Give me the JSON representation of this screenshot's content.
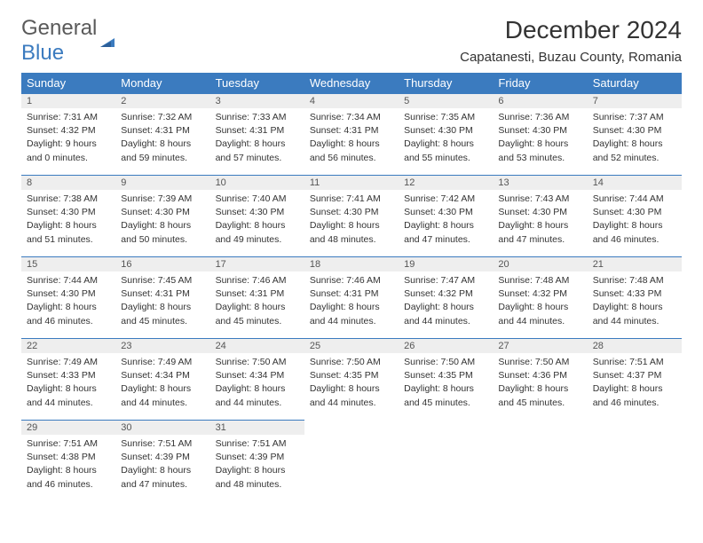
{
  "logo": {
    "line1": "General",
    "line2": "Blue"
  },
  "title": "December 2024",
  "location": "Capatanesti, Buzau County, Romania",
  "columns": [
    "Sunday",
    "Monday",
    "Tuesday",
    "Wednesday",
    "Thursday",
    "Friday",
    "Saturday"
  ],
  "colors": {
    "header_bg": "#3b7bbf",
    "header_text": "#ffffff",
    "daynum_bg": "#eeeeee",
    "daynum_border": "#3b7bbf",
    "text": "#333333"
  },
  "weeks": [
    [
      {
        "n": "1",
        "sunrise": "7:31 AM",
        "sunset": "4:32 PM",
        "dl1": "9 hours",
        "dl2": "0 minutes."
      },
      {
        "n": "2",
        "sunrise": "7:32 AM",
        "sunset": "4:31 PM",
        "dl1": "8 hours",
        "dl2": "59 minutes."
      },
      {
        "n": "3",
        "sunrise": "7:33 AM",
        "sunset": "4:31 PM",
        "dl1": "8 hours",
        "dl2": "57 minutes."
      },
      {
        "n": "4",
        "sunrise": "7:34 AM",
        "sunset": "4:31 PM",
        "dl1": "8 hours",
        "dl2": "56 minutes."
      },
      {
        "n": "5",
        "sunrise": "7:35 AM",
        "sunset": "4:30 PM",
        "dl1": "8 hours",
        "dl2": "55 minutes."
      },
      {
        "n": "6",
        "sunrise": "7:36 AM",
        "sunset": "4:30 PM",
        "dl1": "8 hours",
        "dl2": "53 minutes."
      },
      {
        "n": "7",
        "sunrise": "7:37 AM",
        "sunset": "4:30 PM",
        "dl1": "8 hours",
        "dl2": "52 minutes."
      }
    ],
    [
      {
        "n": "8",
        "sunrise": "7:38 AM",
        "sunset": "4:30 PM",
        "dl1": "8 hours",
        "dl2": "51 minutes."
      },
      {
        "n": "9",
        "sunrise": "7:39 AM",
        "sunset": "4:30 PM",
        "dl1": "8 hours",
        "dl2": "50 minutes."
      },
      {
        "n": "10",
        "sunrise": "7:40 AM",
        "sunset": "4:30 PM",
        "dl1": "8 hours",
        "dl2": "49 minutes."
      },
      {
        "n": "11",
        "sunrise": "7:41 AM",
        "sunset": "4:30 PM",
        "dl1": "8 hours",
        "dl2": "48 minutes."
      },
      {
        "n": "12",
        "sunrise": "7:42 AM",
        "sunset": "4:30 PM",
        "dl1": "8 hours",
        "dl2": "47 minutes."
      },
      {
        "n": "13",
        "sunrise": "7:43 AM",
        "sunset": "4:30 PM",
        "dl1": "8 hours",
        "dl2": "47 minutes."
      },
      {
        "n": "14",
        "sunrise": "7:44 AM",
        "sunset": "4:30 PM",
        "dl1": "8 hours",
        "dl2": "46 minutes."
      }
    ],
    [
      {
        "n": "15",
        "sunrise": "7:44 AM",
        "sunset": "4:30 PM",
        "dl1": "8 hours",
        "dl2": "46 minutes."
      },
      {
        "n": "16",
        "sunrise": "7:45 AM",
        "sunset": "4:31 PM",
        "dl1": "8 hours",
        "dl2": "45 minutes."
      },
      {
        "n": "17",
        "sunrise": "7:46 AM",
        "sunset": "4:31 PM",
        "dl1": "8 hours",
        "dl2": "45 minutes."
      },
      {
        "n": "18",
        "sunrise": "7:46 AM",
        "sunset": "4:31 PM",
        "dl1": "8 hours",
        "dl2": "44 minutes."
      },
      {
        "n": "19",
        "sunrise": "7:47 AM",
        "sunset": "4:32 PM",
        "dl1": "8 hours",
        "dl2": "44 minutes."
      },
      {
        "n": "20",
        "sunrise": "7:48 AM",
        "sunset": "4:32 PM",
        "dl1": "8 hours",
        "dl2": "44 minutes."
      },
      {
        "n": "21",
        "sunrise": "7:48 AM",
        "sunset": "4:33 PM",
        "dl1": "8 hours",
        "dl2": "44 minutes."
      }
    ],
    [
      {
        "n": "22",
        "sunrise": "7:49 AM",
        "sunset": "4:33 PM",
        "dl1": "8 hours",
        "dl2": "44 minutes."
      },
      {
        "n": "23",
        "sunrise": "7:49 AM",
        "sunset": "4:34 PM",
        "dl1": "8 hours",
        "dl2": "44 minutes."
      },
      {
        "n": "24",
        "sunrise": "7:50 AM",
        "sunset": "4:34 PM",
        "dl1": "8 hours",
        "dl2": "44 minutes."
      },
      {
        "n": "25",
        "sunrise": "7:50 AM",
        "sunset": "4:35 PM",
        "dl1": "8 hours",
        "dl2": "44 minutes."
      },
      {
        "n": "26",
        "sunrise": "7:50 AM",
        "sunset": "4:35 PM",
        "dl1": "8 hours",
        "dl2": "45 minutes."
      },
      {
        "n": "27",
        "sunrise": "7:50 AM",
        "sunset": "4:36 PM",
        "dl1": "8 hours",
        "dl2": "45 minutes."
      },
      {
        "n": "28",
        "sunrise": "7:51 AM",
        "sunset": "4:37 PM",
        "dl1": "8 hours",
        "dl2": "46 minutes."
      }
    ],
    [
      {
        "n": "29",
        "sunrise": "7:51 AM",
        "sunset": "4:38 PM",
        "dl1": "8 hours",
        "dl2": "46 minutes."
      },
      {
        "n": "30",
        "sunrise": "7:51 AM",
        "sunset": "4:39 PM",
        "dl1": "8 hours",
        "dl2": "47 minutes."
      },
      {
        "n": "31",
        "sunrise": "7:51 AM",
        "sunset": "4:39 PM",
        "dl1": "8 hours",
        "dl2": "48 minutes."
      },
      null,
      null,
      null,
      null
    ]
  ]
}
